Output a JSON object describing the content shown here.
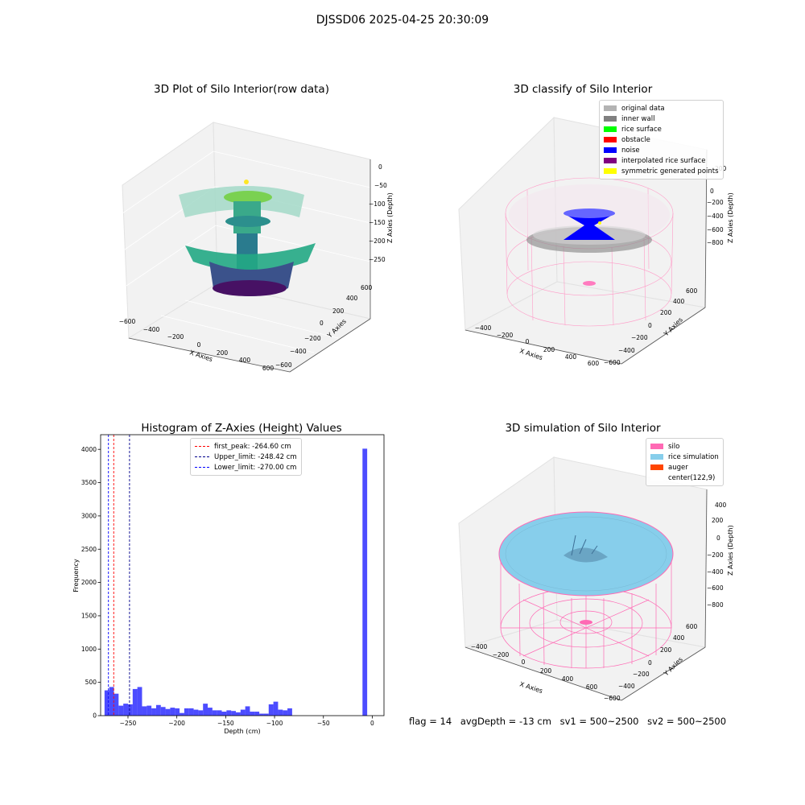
{
  "suptitle": "DJSSD06 2025-04-25 20:30:09",
  "panels": {
    "raw": {
      "title": "3D Plot of Silo Interior(row data)",
      "xlabel": "X Axies",
      "ylabel": "Y Axies",
      "zlabel": "Z Axies (Depth)",
      "xticks": [
        "−600",
        "−400",
        "−200",
        "0",
        "200",
        "400",
        "600"
      ],
      "yticks": [
        "−600",
        "−400",
        "−200",
        "0",
        "200",
        "400",
        "600"
      ],
      "zticks": [
        "0",
        "−50",
        "−100",
        "−150",
        "−200",
        "−250"
      ]
    },
    "classify": {
      "title": "3D classify of Silo Interior",
      "xlabel": "X Axies",
      "ylabel": "Y Axies",
      "zlabel": "Z Axies (Depth)",
      "xticks": [
        "−400",
        "−200",
        "0",
        "200",
        "400",
        "600"
      ],
      "yticks": [
        "−600",
        "−400",
        "−200",
        "0",
        "200",
        "400",
        "600"
      ],
      "zticks": [
        "200",
        "0",
        "−200",
        "−400",
        "−600",
        "−800"
      ],
      "legend": [
        {
          "label": "original data",
          "color": "#b3b3b3"
        },
        {
          "label": "inner wall",
          "color": "#808080"
        },
        {
          "label": "rice surface",
          "color": "#00ff00"
        },
        {
          "label": "obstacle",
          "color": "#ff0000"
        },
        {
          "label": "noise",
          "color": "#0000ff"
        },
        {
          "label": "interpolated rice surface",
          "color": "#800080"
        },
        {
          "label": "symmetric generated points",
          "color": "#ffff00"
        }
      ]
    },
    "simulation": {
      "title": "3D simulation of Silo Interior",
      "xlabel": "X Axies",
      "ylabel": "Y Axies",
      "zlabel": "Z Axies (Depth)",
      "xticks": [
        "−400",
        "−200",
        "0",
        "200",
        "400",
        "600"
      ],
      "yticks": [
        "−600",
        "−400",
        "−200",
        "0",
        "200",
        "400",
        "600"
      ],
      "zticks": [
        "400",
        "200",
        "0",
        "−200",
        "−400",
        "−600",
        "−800"
      ],
      "legend": [
        {
          "label": "silo",
          "color": "#ff69b4"
        },
        {
          "label": "rice simulation",
          "color": "#87ceeb"
        },
        {
          "label": "auger",
          "color": "#ff4500"
        },
        {
          "label": "center(122,9)",
          "color": "#ffffff"
        }
      ]
    }
  },
  "status": {
    "flag": "flag = 14",
    "avg_depth": "avgDepth = -13 cm",
    "sv1": "sv1 = 500~2500",
    "sv2": "sv2 = 500~2500"
  },
  "chart_data": [
    {
      "type": "histogram",
      "title": "Histogram of Z-Axies (Height) Values",
      "xlabel": "Depth (cm)",
      "ylabel": "Frequency",
      "xlim": [
        -278,
        12
      ],
      "ylim": [
        0,
        4220
      ],
      "xticks": [
        -250,
        -200,
        -150,
        -100,
        -50,
        0
      ],
      "yticks": [
        0,
        500,
        1000,
        1500,
        2000,
        2500,
        3000,
        3500,
        4000
      ],
      "bin_start": -274,
      "bin_width": 4.8,
      "counts": [
        380,
        430,
        330,
        150,
        180,
        170,
        400,
        430,
        140,
        150,
        110,
        160,
        130,
        100,
        120,
        110,
        40,
        110,
        110,
        90,
        80,
        180,
        120,
        80,
        80,
        60,
        80,
        70,
        50,
        90,
        140,
        60,
        60,
        30,
        30,
        170,
        210,
        90,
        80,
        110,
        0,
        0,
        0,
        0,
        0,
        0,
        0,
        0,
        0,
        0,
        0,
        0,
        0,
        0,
        0,
        4010
      ],
      "bar_color": "#0000ff",
      "vlines": [
        {
          "label": "first_peak: -264.60 cm",
          "x": -264.6,
          "color": "#ff0000"
        },
        {
          "label": "Upper_limit: -248.42 cm",
          "x": -248.42,
          "color": "#00008b"
        },
        {
          "label": "Lower_limit: -270.00 cm",
          "x": -270.0,
          "color": "#0000ff"
        }
      ],
      "legend_position": "upper-center"
    }
  ]
}
